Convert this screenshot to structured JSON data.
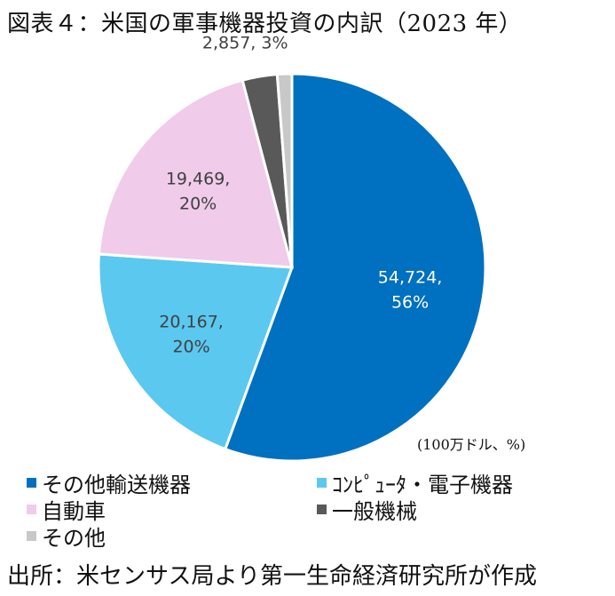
{
  "title": "図表４：米国の軍事機器投資の内訳（2023 年）",
  "unit_note": "(100万ドル、%)",
  "source": "出所：米センサス局より第一生命経済研究所が作成",
  "colors": {
    "other_transport": "#0070c0",
    "computer_electronic": "#5bc8f0",
    "automobile": "#f0cbea",
    "general_machinery": "#595959",
    "other": "#c8c8c8"
  },
  "chart_data": {
    "type": "pie",
    "title": "図表４：米国の軍事機器投資の内訳（2023 年）",
    "unit": "(100万ドル、%)",
    "start": "12 o'clock",
    "direction": "clockwise",
    "legend_position": "bottom",
    "slices": [
      {
        "name": "その他輸送機器",
        "value": 54724,
        "percent": 56,
        "label_line1": "54,724,",
        "label_line2": "56%",
        "color": "#0070c0",
        "label_color": "#ffffff"
      },
      {
        "name": "ｺﾝﾋﾟｭｰﾀ・電子機器",
        "value": 20167,
        "percent": 20,
        "label_line1": "20,167,",
        "label_line2": "20%",
        "color": "#5bc8f0",
        "label_color": "#404040"
      },
      {
        "name": "自動車",
        "value": 19469,
        "percent": 20,
        "label_line1": "19,469,",
        "label_line2": "20%",
        "color": "#f0cbea",
        "label_color": "#404040"
      },
      {
        "name": "一般機械",
        "value": 2857,
        "percent": 3,
        "label_line1": "2,857, 3%",
        "label_line2": "",
        "color": "#595959",
        "label_color": "#404040"
      },
      {
        "name": "その他",
        "value": 1200,
        "percent": 1,
        "label_line1": "",
        "label_line2": "",
        "color": "#c8c8c8",
        "label_color": "#404040"
      }
    ]
  }
}
